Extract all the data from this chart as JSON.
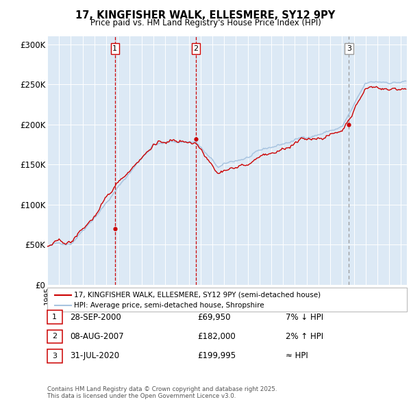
{
  "title": "17, KINGFISHER WALK, ELLESMERE, SY12 9PY",
  "subtitle": "Price paid vs. HM Land Registry's House Price Index (HPI)",
  "legend_line1": "17, KINGFISHER WALK, ELLESMERE, SY12 9PY (semi-detached house)",
  "legend_line2": "HPI: Average price, semi-detached house, Shropshire",
  "background_color": "#ffffff",
  "plot_bg_color": "#dce9f5",
  "grid_color": "#ffffff",
  "hpi_color": "#a8c4e0",
  "price_color": "#cc0000",
  "transactions": [
    {
      "date_year": 2000.74,
      "price": 69950,
      "label": "1",
      "vline_style": "red_dashed"
    },
    {
      "date_year": 2007.6,
      "price": 182000,
      "label": "2",
      "vline_style": "red_dashed"
    },
    {
      "date_year": 2020.58,
      "price": 199995,
      "label": "3",
      "vline_style": "gray_dashed"
    }
  ],
  "table_rows": [
    {
      "num": "1",
      "date": "28-SEP-2000",
      "price": "£69,950",
      "relation": "7% ↓ HPI"
    },
    {
      "num": "2",
      "date": "08-AUG-2007",
      "price": "£182,000",
      "relation": "2% ↑ HPI"
    },
    {
      "num": "3",
      "date": "31-JUL-2020",
      "price": "£199,995",
      "relation": "≈ HPI"
    }
  ],
  "footer": "Contains HM Land Registry data © Crown copyright and database right 2025.\nThis data is licensed under the Open Government Licence v3.0.",
  "ylim": [
    0,
    310000
  ],
  "yticks": [
    0,
    50000,
    100000,
    150000,
    200000,
    250000,
    300000
  ],
  "ytick_labels": [
    "£0",
    "£50K",
    "£100K",
    "£150K",
    "£200K",
    "£250K",
    "£300K"
  ],
  "xmin": 1995.0,
  "xmax": 2025.5
}
